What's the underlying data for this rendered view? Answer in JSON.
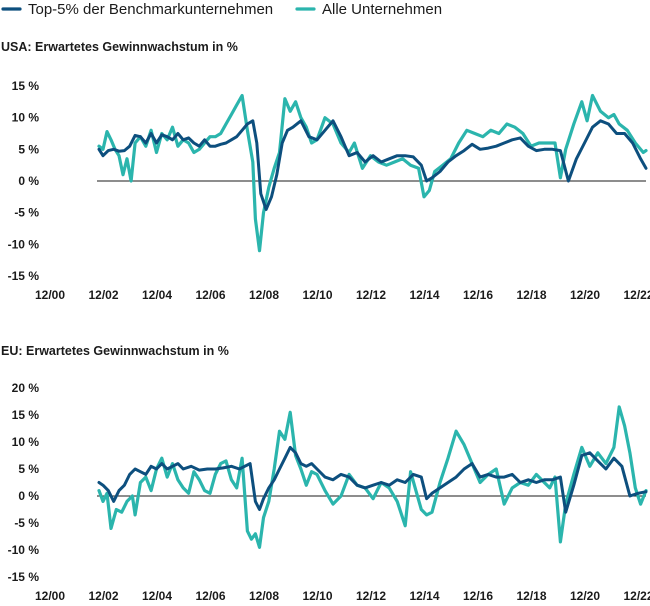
{
  "legend": [
    {
      "name": "Top-5% der Benchmarkunternehmen",
      "color": "#0d4f7e"
    },
    {
      "name": "Alle Unternehmen",
      "color": "#2bb5ad"
    }
  ],
  "chart_data": [
    {
      "type": "line",
      "title": "USA: Erwartetes Gewinnwachstum in %",
      "xlabel": "",
      "ylabel": "",
      "xlim": [
        2000.92,
        2023.2
      ],
      "ylim": [
        -15,
        15
      ],
      "yticks": [
        15,
        10,
        5,
        0,
        -5,
        -10,
        -15
      ],
      "ytick_labels": [
        "15 %",
        "10 %",
        "5 %",
        "0 %",
        "-5 %",
        "-10 %",
        "-15 %"
      ],
      "xticks": [
        2000.92,
        2002.92,
        2004.92,
        2006.92,
        2008.92,
        2010.92,
        2012.92,
        2014.92,
        2016.92,
        2018.92,
        2020.92,
        2022.92
      ],
      "xtick_labels": [
        "12/00",
        "12/02",
        "12/04",
        "12/06",
        "12/08",
        "12/10",
        "12/12",
        "12/14",
        "12/16",
        "12/18",
        "12/20",
        "12/22"
      ],
      "series": [
        {
          "name": "Top-5% der Benchmarkunternehmen",
          "color": "#0d4f7e",
          "x": [
            2002.75,
            2002.9,
            2003.1,
            2003.3,
            2003.5,
            2003.7,
            2003.9,
            2004.1,
            2004.3,
            2004.5,
            2004.7,
            2004.9,
            2005.1,
            2005.3,
            2005.5,
            2005.7,
            2005.9,
            2006.1,
            2006.3,
            2006.5,
            2006.7,
            2006.9,
            2007.1,
            2007.3,
            2007.5,
            2007.7,
            2007.9,
            2008.1,
            2008.3,
            2008.5,
            2008.65,
            2008.8,
            2009.0,
            2009.2,
            2009.4,
            2009.6,
            2009.8,
            2010.0,
            2010.3,
            2010.6,
            2010.9,
            2011.2,
            2011.5,
            2011.8,
            2012.1,
            2012.4,
            2012.7,
            2013.0,
            2013.3,
            2013.6,
            2013.9,
            2014.2,
            2014.5,
            2014.8,
            2015.0,
            2015.2,
            2015.5,
            2015.8,
            2016.1,
            2016.4,
            2016.7,
            2017.0,
            2017.3,
            2017.6,
            2017.9,
            2018.2,
            2018.5,
            2018.8,
            2019.1,
            2019.4,
            2019.7,
            2020.0,
            2020.3,
            2020.6,
            2020.9,
            2021.2,
            2021.5,
            2021.8,
            2022.1,
            2022.4,
            2022.7,
            2023.0,
            2023.2
          ],
          "values": [
            5.0,
            4.0,
            4.8,
            5.0,
            4.7,
            4.8,
            5.5,
            7.2,
            7.0,
            6.0,
            7.5,
            6.0,
            7.3,
            7.0,
            6.5,
            7.5,
            6.5,
            6.8,
            6.0,
            5.5,
            6.5,
            5.5,
            5.5,
            5.8,
            6.0,
            6.5,
            7.0,
            8.0,
            9.0,
            9.5,
            6.0,
            -2.0,
            -4.5,
            -2.5,
            1.0,
            6.0,
            8.0,
            8.5,
            9.5,
            7.0,
            6.5,
            8.0,
            9.5,
            7.0,
            4.0,
            4.5,
            3.0,
            4.0,
            3.0,
            3.5,
            4.0,
            4.0,
            3.8,
            2.5,
            0.0,
            0.5,
            1.5,
            3.0,
            4.0,
            4.8,
            5.8,
            5.0,
            5.2,
            5.5,
            6.0,
            6.5,
            6.8,
            5.5,
            4.8,
            5.0,
            5.0,
            4.8,
            0.0,
            3.5,
            6.0,
            8.5,
            9.5,
            9.0,
            7.5,
            7.5,
            6.0,
            3.5,
            2.0
          ]
        },
        {
          "name": "Alle Unternehmen",
          "color": "#2bb5ad",
          "x": [
            2002.75,
            2002.9,
            2003.05,
            2003.2,
            2003.35,
            2003.5,
            2003.65,
            2003.8,
            2003.95,
            2004.1,
            2004.3,
            2004.5,
            2004.7,
            2004.9,
            2005.1,
            2005.3,
            2005.5,
            2005.7,
            2005.9,
            2006.1,
            2006.3,
            2006.5,
            2006.7,
            2006.9,
            2007.1,
            2007.3,
            2007.5,
            2007.7,
            2007.9,
            2008.1,
            2008.3,
            2008.5,
            2008.6,
            2008.75,
            2008.9,
            2009.1,
            2009.3,
            2009.5,
            2009.7,
            2009.9,
            2010.1,
            2010.3,
            2010.5,
            2010.7,
            2010.9,
            2011.2,
            2011.5,
            2011.8,
            2012.1,
            2012.3,
            2012.6,
            2012.9,
            2013.2,
            2013.5,
            2013.8,
            2014.1,
            2014.4,
            2014.7,
            2014.9,
            2015.1,
            2015.3,
            2015.6,
            2015.9,
            2016.2,
            2016.5,
            2016.8,
            2017.1,
            2017.4,
            2017.7,
            2018.0,
            2018.3,
            2018.6,
            2018.9,
            2019.2,
            2019.5,
            2019.8,
            2020.0,
            2020.2,
            2020.5,
            2020.8,
            2021.0,
            2021.2,
            2021.5,
            2021.8,
            2022.0,
            2022.2,
            2022.5,
            2022.8,
            2023.1,
            2023.2
          ],
          "values": [
            5.5,
            5.0,
            7.8,
            6.5,
            5.0,
            4.0,
            1.0,
            3.5,
            0.0,
            6.0,
            7.0,
            5.5,
            8.0,
            4.5,
            7.5,
            6.5,
            8.5,
            5.5,
            6.5,
            6.0,
            4.5,
            5.0,
            6.0,
            7.0,
            7.0,
            7.5,
            9.0,
            10.5,
            12.0,
            13.5,
            8.0,
            3.0,
            -6.0,
            -11.0,
            -5.0,
            -1.0,
            2.0,
            4.5,
            13.0,
            11.0,
            12.5,
            10.0,
            8.5,
            6.0,
            6.5,
            10.0,
            9.0,
            6.0,
            4.5,
            6.0,
            2.0,
            4.0,
            3.0,
            2.5,
            3.0,
            3.5,
            2.5,
            2.0,
            -2.5,
            -1.5,
            1.5,
            2.5,
            3.5,
            6.0,
            8.0,
            7.5,
            7.0,
            8.0,
            7.5,
            9.0,
            8.5,
            7.5,
            5.5,
            6.0,
            6.0,
            6.0,
            0.5,
            5.0,
            9.0,
            12.5,
            9.5,
            13.5,
            11.0,
            10.0,
            10.5,
            9.0,
            8.0,
            6.0,
            4.5,
            4.8
          ]
        }
      ]
    },
    {
      "type": "line",
      "title": "EU: Erwartetes Gewinnwachstum in %",
      "xlabel": "",
      "ylabel": "",
      "xlim": [
        2000.92,
        2023.2
      ],
      "ylim": [
        -15,
        20
      ],
      "yticks": [
        20,
        15,
        10,
        5,
        0,
        -5,
        -10,
        -15
      ],
      "ytick_labels": [
        "20 %",
        "15 %",
        "10 %",
        "5 %",
        "0 %",
        "-5 %",
        "-10 %",
        "-15 %"
      ],
      "xticks": [
        2000.92,
        2002.92,
        2004.92,
        2006.92,
        2008.92,
        2010.92,
        2012.92,
        2014.92,
        2016.92,
        2018.92,
        2020.92,
        2022.92
      ],
      "xtick_labels": [
        "12/00",
        "12/02",
        "12/04",
        "12/06",
        "12/08",
        "12/10",
        "12/12",
        "12/14",
        "12/16",
        "12/18",
        "12/20",
        "12/22"
      ],
      "series": [
        {
          "name": "Top-5% der Benchmarkunternehmen",
          "color": "#0d4f7e",
          "x": [
            2002.75,
            2002.9,
            2003.1,
            2003.3,
            2003.5,
            2003.7,
            2003.9,
            2004.1,
            2004.3,
            2004.5,
            2004.7,
            2004.9,
            2005.1,
            2005.3,
            2005.5,
            2005.7,
            2005.9,
            2006.2,
            2006.5,
            2006.8,
            2007.1,
            2007.4,
            2007.7,
            2008.0,
            2008.2,
            2008.4,
            2008.6,
            2008.75,
            2008.9,
            2009.1,
            2009.3,
            2009.5,
            2009.7,
            2009.9,
            2010.1,
            2010.3,
            2010.5,
            2010.7,
            2010.9,
            2011.2,
            2011.5,
            2011.8,
            2012.1,
            2012.4,
            2012.7,
            2013.0,
            2013.3,
            2013.6,
            2013.9,
            2014.2,
            2014.5,
            2014.8,
            2015.0,
            2015.2,
            2015.5,
            2015.8,
            2016.1,
            2016.4,
            2016.7,
            2017.0,
            2017.3,
            2017.6,
            2017.9,
            2018.2,
            2018.5,
            2018.8,
            2019.1,
            2019.4,
            2019.7,
            2020.0,
            2020.2,
            2020.5,
            2020.8,
            2021.1,
            2021.4,
            2021.7,
            2022.0,
            2022.3,
            2022.6,
            2022.9,
            2023.2
          ],
          "values": [
            2.5,
            2.0,
            1.0,
            -1.0,
            1.0,
            2.0,
            4.0,
            5.0,
            4.5,
            4.0,
            5.5,
            5.0,
            6.0,
            5.0,
            5.5,
            6.0,
            5.0,
            5.5,
            4.8,
            5.0,
            5.0,
            5.2,
            5.5,
            5.0,
            5.5,
            6.0,
            -1.0,
            -2.5,
            -0.5,
            1.5,
            3.0,
            5.0,
            7.0,
            9.0,
            8.0,
            6.0,
            5.5,
            6.0,
            5.0,
            3.5,
            3.0,
            4.0,
            3.5,
            2.0,
            1.5,
            2.0,
            2.5,
            2.0,
            3.0,
            2.5,
            4.0,
            3.5,
            -0.5,
            0.5,
            1.5,
            2.5,
            3.5,
            5.0,
            6.0,
            3.5,
            4.0,
            3.5,
            3.5,
            4.0,
            2.5,
            3.0,
            2.5,
            3.0,
            3.0,
            3.5,
            -3.0,
            2.0,
            7.5,
            8.0,
            6.5,
            5.0,
            7.0,
            5.5,
            0.0,
            0.5,
            0.8
          ]
        },
        {
          "name": "Alle Unternehmen",
          "color": "#2bb5ad",
          "x": [
            2002.75,
            2002.9,
            2003.05,
            2003.2,
            2003.4,
            2003.6,
            2003.8,
            2004.0,
            2004.1,
            2004.3,
            2004.5,
            2004.7,
            2004.9,
            2005.1,
            2005.3,
            2005.5,
            2005.7,
            2005.9,
            2006.1,
            2006.3,
            2006.5,
            2006.7,
            2006.9,
            2007.1,
            2007.3,
            2007.5,
            2007.7,
            2007.9,
            2008.1,
            2008.3,
            2008.45,
            2008.6,
            2008.75,
            2008.9,
            2009.1,
            2009.3,
            2009.5,
            2009.7,
            2009.9,
            2010.1,
            2010.3,
            2010.5,
            2010.7,
            2010.9,
            2011.2,
            2011.5,
            2011.8,
            2012.1,
            2012.4,
            2012.7,
            2013.0,
            2013.3,
            2013.6,
            2013.9,
            2014.2,
            2014.4,
            2014.6,
            2014.8,
            2015.0,
            2015.2,
            2015.5,
            2015.8,
            2016.1,
            2016.4,
            2016.7,
            2017.0,
            2017.3,
            2017.6,
            2017.9,
            2018.2,
            2018.5,
            2018.8,
            2019.1,
            2019.4,
            2019.6,
            2019.8,
            2020.0,
            2020.2,
            2020.5,
            2020.8,
            2021.1,
            2021.4,
            2021.7,
            2022.0,
            2022.2,
            2022.4,
            2022.6,
            2022.8,
            2023.0,
            2023.2
          ],
          "values": [
            1.0,
            -1.0,
            0.5,
            -6.0,
            -2.5,
            -3.0,
            -1.0,
            0.0,
            -3.5,
            2.5,
            3.5,
            1.0,
            5.0,
            7.0,
            3.5,
            6.0,
            3.0,
            1.5,
            0.5,
            4.5,
            3.0,
            1.0,
            0.5,
            4.0,
            6.0,
            6.5,
            3.0,
            1.5,
            7.0,
            -6.5,
            -8.0,
            -7.0,
            -9.5,
            -4.0,
            -1.0,
            5.0,
            12.0,
            10.5,
            15.5,
            7.5,
            5.0,
            2.0,
            4.5,
            4.0,
            1.0,
            -1.5,
            0.0,
            4.0,
            2.0,
            1.5,
            -0.5,
            2.5,
            1.5,
            -1.0,
            -5.5,
            4.5,
            1.0,
            -2.5,
            -3.5,
            -3.0,
            2.5,
            7.0,
            12.0,
            9.5,
            6.0,
            2.5,
            4.0,
            5.0,
            -1.5,
            1.5,
            2.5,
            2.0,
            4.0,
            2.5,
            1.5,
            3.5,
            -8.5,
            -1.5,
            4.0,
            9.0,
            5.5,
            8.0,
            6.0,
            9.0,
            16.5,
            13.0,
            8.0,
            1.5,
            -1.5,
            1.0
          ]
        }
      ]
    }
  ]
}
